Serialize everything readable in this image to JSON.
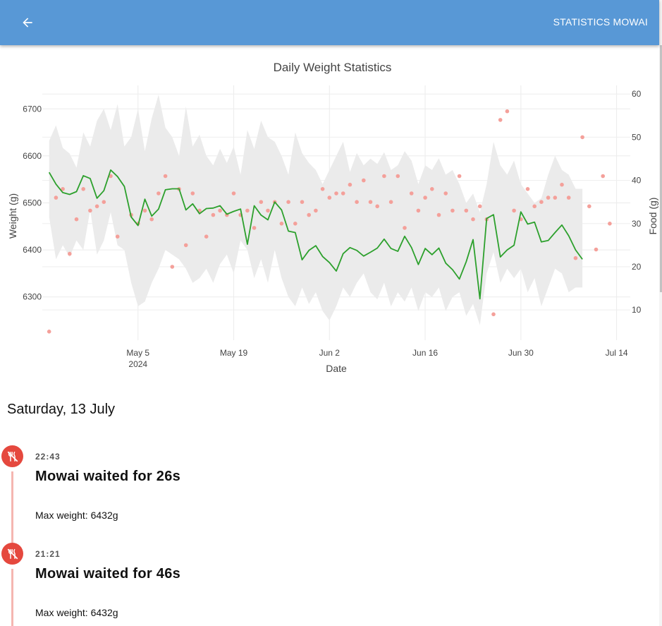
{
  "appbar": {
    "title": "STATISTICS MOWAI",
    "back_icon": "arrow-left-icon",
    "color": "#5898d6"
  },
  "chart_data": {
    "type": "line",
    "title": "Daily Weight Statistics",
    "xlabel": "Date",
    "ylabel": "Weight (g)",
    "y2label": "Food (g)",
    "ylim": [
      6208,
      6750
    ],
    "y2lim": [
      3,
      62
    ],
    "xlim": [
      "2024-04-21",
      "2024-07-16"
    ],
    "x_ticks": [
      {
        "date": "2024-05-05",
        "label": "May 5",
        "sublabel": "2024"
      },
      {
        "date": "2024-05-19",
        "label": "May 19",
        "sublabel": ""
      },
      {
        "date": "2024-06-02",
        "label": "Jun 2",
        "sublabel": ""
      },
      {
        "date": "2024-06-16",
        "label": "Jun 16",
        "sublabel": ""
      },
      {
        "date": "2024-06-30",
        "label": "Jun 30",
        "sublabel": ""
      },
      {
        "date": "2024-07-14",
        "label": "Jul 14",
        "sublabel": ""
      }
    ],
    "y_ticks": [
      6300,
      6400,
      6500,
      6600,
      6700
    ],
    "y2_ticks": [
      10,
      20,
      30,
      40,
      50,
      60
    ],
    "grid": true,
    "start_date": "2024-04-22",
    "colors": {
      "weight_line": "#2ca02c",
      "range_band": "#ebebeb",
      "food_points": "#f4a09a"
    },
    "series": [
      {
        "values": [
          6565,
          6540,
          6522,
          6518,
          6524,
          6558,
          6552,
          6510,
          6526,
          6570,
          6556,
          6535,
          6470,
          6452,
          6508,
          6472,
          6487,
          6528,
          6530,
          6530,
          6485,
          6498,
          6477,
          6488,
          6489,
          6494,
          6476,
          6482,
          6487,
          6412,
          6494,
          6474,
          6464,
          6502,
          6485,
          6440,
          6437,
          6379,
          6399,
          6409,
          6386,
          6373,
          6355,
          6392,
          6405,
          6399,
          6387,
          6395,
          6404,
          6423,
          6403,
          6397,
          6429,
          6405,
          6369,
          6403,
          6390,
          6404,
          6372,
          6358,
          6338,
          6375,
          6422,
          6296,
          6467,
          6475,
          6385,
          6400,
          6410,
          6481,
          6455,
          6459,
          6417,
          6420,
          6437,
          6453,
          6430,
          6400,
          6380
        ]
      },
      {
        "upper": [
          6632,
          6665,
          6617,
          6605,
          6575,
          6650,
          6620,
          6675,
          6700,
          6655,
          6710,
          6620,
          6640,
          6700,
          6610,
          6680,
          6730,
          6660,
          6640,
          6600,
          6705,
          6620,
          6645,
          6600,
          6580,
          6615,
          6585,
          6620,
          6560,
          6655,
          6615,
          6675,
          6640,
          6630,
          6600,
          6560,
          6650,
          6606,
          6585,
          6570,
          6540,
          6570,
          6600,
          6630,
          6566,
          6606,
          6580,
          6594,
          6583,
          6608,
          6570,
          6580,
          6610,
          6590,
          6540,
          6580,
          6570,
          6595,
          6560,
          6570,
          6540,
          6500,
          6520,
          6480,
          6540,
          6630,
          6580,
          6560,
          6590,
          6540,
          6520,
          6500,
          6510,
          6560,
          6600,
          6570,
          6560,
          6530,
          6530
        ],
        "lower": [
          6470,
          6380,
          6410,
          6385,
          6420,
          6400,
          6485,
          6390,
          6420,
          6480,
          6410,
          6400,
          6330,
          6280,
          6290,
          6330,
          6360,
          6400,
          6390,
          6380,
          6360,
          6330,
          6340,
          6360,
          6330,
          6370,
          6390,
          6350,
          6420,
          6400,
          6340,
          6380,
          6330,
          6400,
          6340,
          6300,
          6280,
          6320,
          6285,
          6310,
          6270,
          6250,
          6280,
          6320,
          6300,
          6330,
          6350,
          6310,
          6295,
          6330,
          6280,
          6310,
          6290,
          6320,
          6270,
          6310,
          6300,
          6320,
          6270,
          6300,
          6310,
          6260,
          6285,
          6240,
          6350,
          6395,
          6330,
          6360,
          6340,
          6360,
          6310,
          6340,
          6280,
          6320,
          6360,
          6350,
          6310,
          6320,
          6320
        ]
      },
      {
        "food_dates": [
          "04-22",
          "04-23",
          "04-24",
          "04-25",
          "04-26",
          "04-27",
          "04-28",
          "04-29",
          "04-30",
          "05-01",
          "05-02",
          "05-04",
          "05-05",
          "05-06",
          "05-07",
          "05-08",
          "05-09",
          "05-10",
          "05-11",
          "05-12",
          "05-13",
          "05-14",
          "05-15",
          "05-16",
          "05-17",
          "05-18",
          "05-19",
          "05-20",
          "05-21",
          "05-22",
          "05-23",
          "05-24",
          "05-25",
          "05-26",
          "05-27",
          "05-28",
          "05-29",
          "05-30",
          "05-31",
          "06-01",
          "06-02",
          "06-03",
          "06-04",
          "06-05",
          "06-06",
          "06-07",
          "06-08",
          "06-09",
          "06-10",
          "06-11",
          "06-12",
          "06-13",
          "06-14",
          "06-15",
          "06-16",
          "06-17",
          "06-18",
          "06-19",
          "06-20",
          "06-21",
          "06-22",
          "06-23",
          "06-24",
          "06-25",
          "06-26",
          "06-27",
          "06-28",
          "06-29",
          "06-30",
          "07-01",
          "07-02",
          "07-03",
          "07-04",
          "07-05",
          "07-06",
          "07-07",
          "07-08",
          "07-09",
          "07-10",
          "07-11",
          "07-12",
          "07-13"
        ],
        "food": [
          5,
          36,
          38,
          23,
          31,
          38,
          33,
          34,
          35,
          41,
          27,
          32,
          30,
          33,
          31,
          37,
          41,
          20,
          38,
          25,
          37,
          33,
          27,
          32,
          33,
          32,
          37,
          32,
          33,
          29,
          35,
          33,
          35,
          30,
          35,
          30,
          35,
          32,
          33,
          38,
          36,
          37,
          37,
          39,
          35,
          40,
          35,
          34,
          41,
          35,
          41,
          29,
          37,
          33,
          36,
          38,
          32,
          37,
          33,
          41,
          33,
          31,
          34,
          31,
          9,
          54,
          56,
          33,
          31,
          38,
          34,
          35,
          36,
          36,
          39,
          36,
          22,
          50,
          34,
          24,
          41,
          30
        ]
      }
    ]
  },
  "day_heading": "Saturday, 13 July",
  "events": [
    {
      "time": "22:43",
      "title": "Mowai waited for 26s",
      "detail": "Max weight: 6432g",
      "icon": "no-food-icon"
    },
    {
      "time": "21:21",
      "title": "Mowai waited for 46s",
      "detail": "Max weight: 6432g",
      "icon": "no-food-icon"
    }
  ]
}
